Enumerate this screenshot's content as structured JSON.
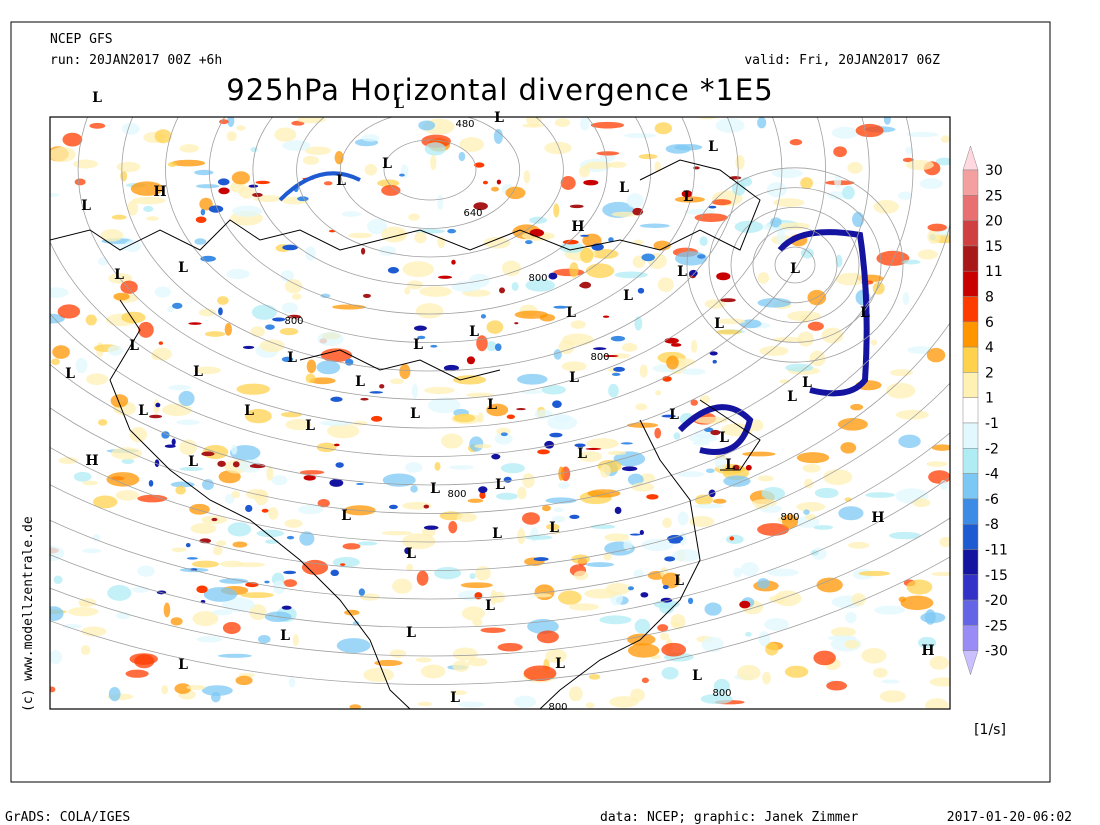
{
  "header": {
    "model": "NCEP GFS",
    "run": "run: 20JAN2017 00Z +6h",
    "valid": "valid: Fri, 20JAN2017 06Z",
    "title": "925hPa Horizontal divergence *1E5"
  },
  "map": {
    "pressure_centers": [
      "L",
      "L",
      "L",
      "L",
      "L",
      "L",
      "H",
      "L",
      "L",
      "H",
      "L",
      "L",
      "L",
      "L",
      "L",
      "L",
      "L",
      "L",
      "L",
      "L",
      "L",
      "L",
      "L",
      "L",
      "L",
      "L",
      "L",
      "L",
      "L",
      "L",
      "L",
      "L",
      "L",
      "L",
      "L",
      "L",
      "H",
      "L",
      "L",
      "L",
      "L",
      "L",
      "H",
      "L",
      "L",
      "L",
      "L",
      "L",
      "L",
      "L",
      "L",
      "H",
      "L",
      "L",
      "L",
      "L"
    ],
    "contour_labels": [
      "480",
      "640",
      "800",
      "800",
      "800",
      "800",
      "800",
      "800",
      "800"
    ]
  },
  "colorbar": {
    "levels": [
      30,
      25,
      20,
      15,
      11,
      8,
      6,
      4,
      2,
      1,
      -1,
      -2,
      -4,
      -6,
      -8,
      -11,
      -15,
      -20,
      -25,
      -30
    ],
    "colors": [
      "#ffd8e0",
      "#f4a0a0",
      "#e87070",
      "#d04040",
      "#a81818",
      "#c80000",
      "#ff3c00",
      "#ff9600",
      "#ffd24e",
      "#fff0b4",
      "#ffffff",
      "#e2f8ff",
      "#b0ecf4",
      "#7cc8f4",
      "#3c8ce6",
      "#1e5ad2",
      "#1414a0",
      "#3232c8",
      "#6464e6",
      "#9a8cf6",
      "#cac0ff"
    ],
    "unit": "[1/s]"
  },
  "credit": "(c) www.modellzentrale.de",
  "footer": {
    "left": "GrADS: COLA/IGES",
    "middle": "data: NCEP; graphic: Janek Zimmer",
    "right": "2017-01-20-06:02"
  }
}
